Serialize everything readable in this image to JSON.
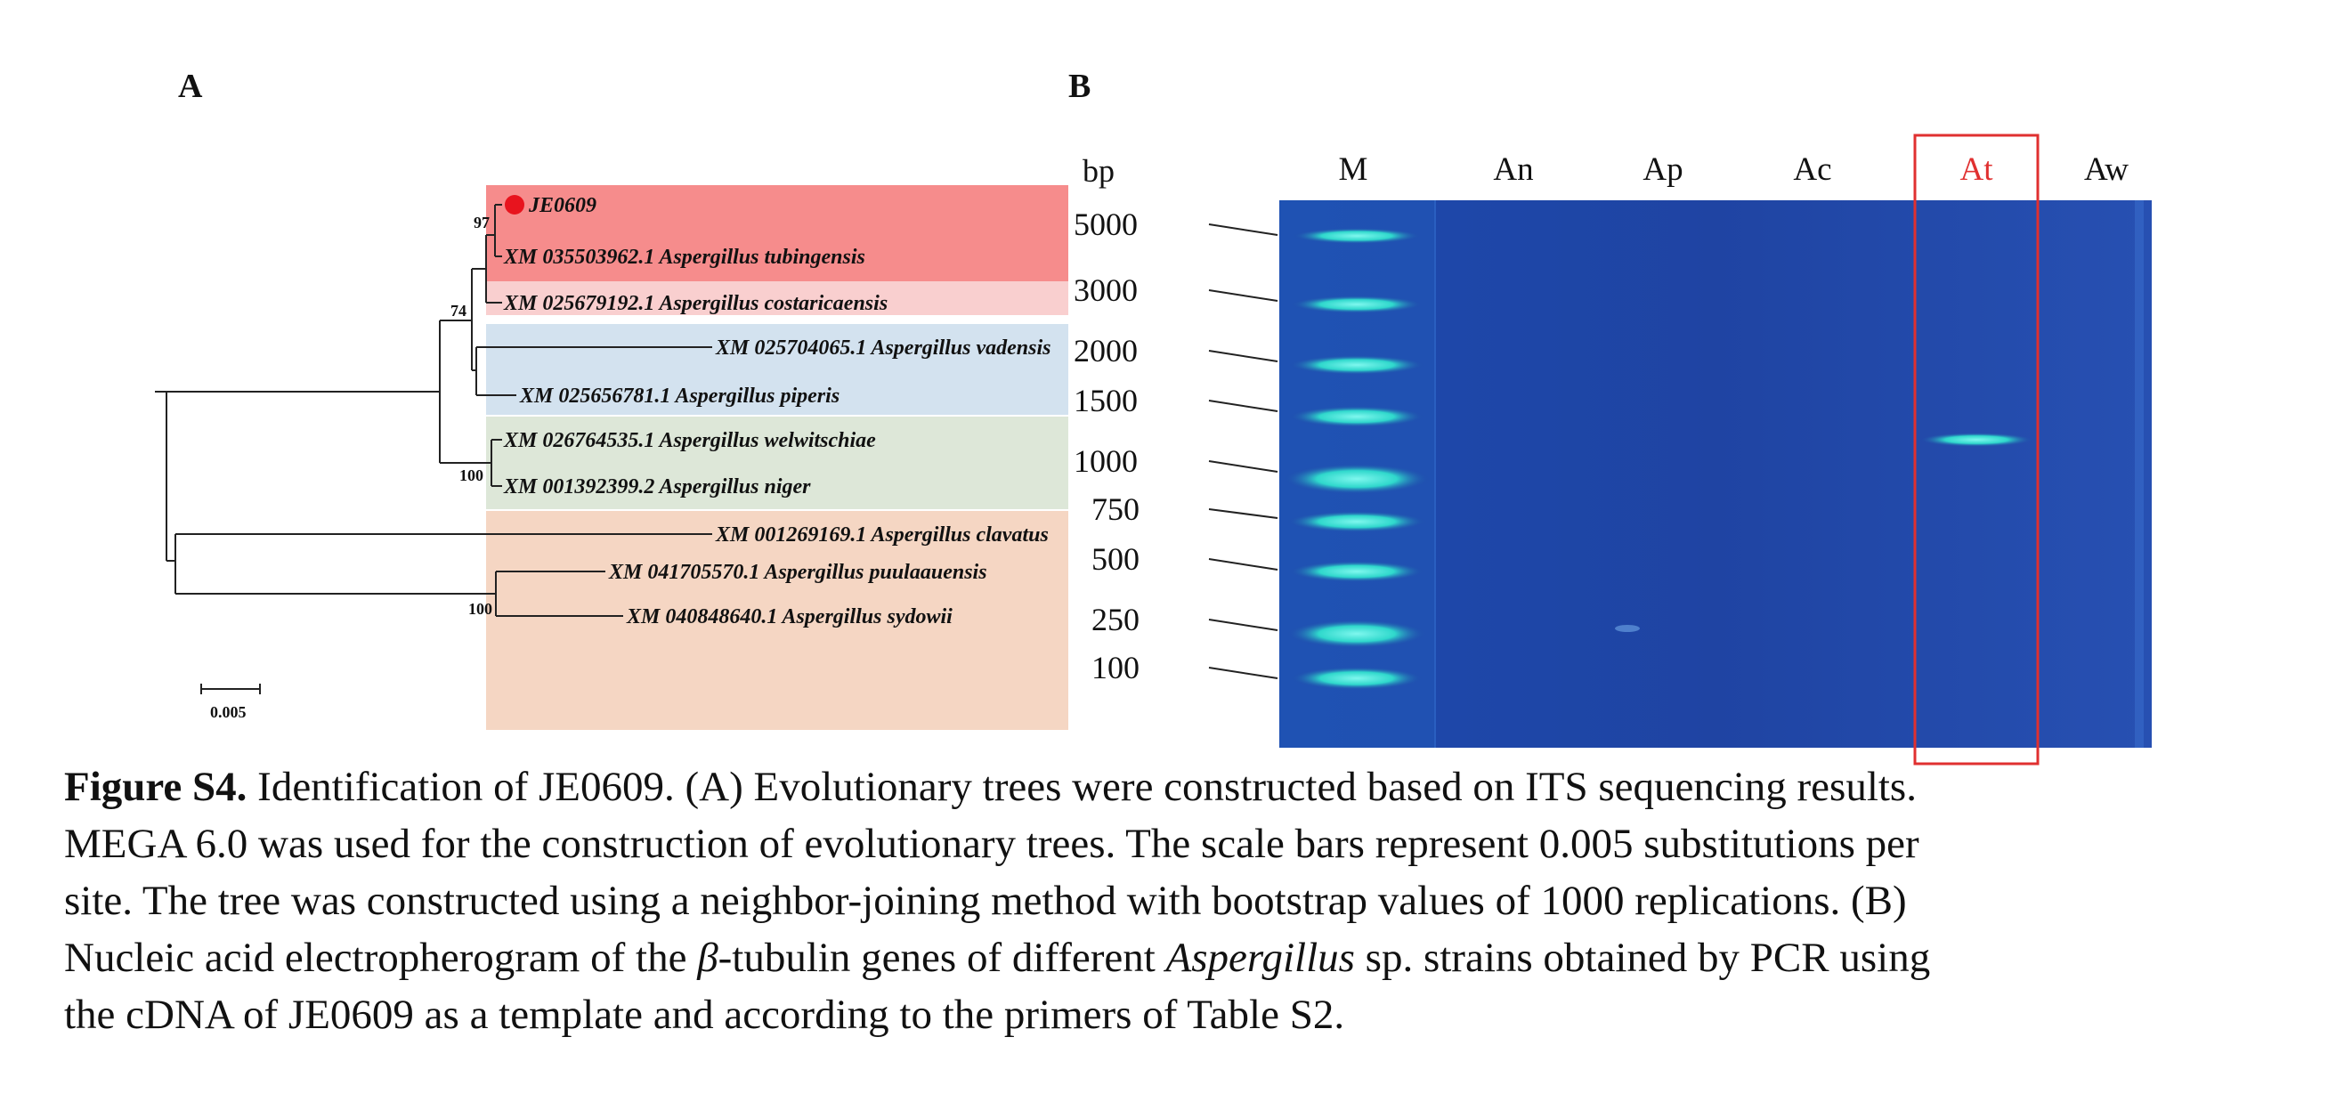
{
  "panel_labels": {
    "a": "A",
    "b": "B"
  },
  "tree": {
    "leaves": [
      {
        "label": "JE0609",
        "highlight": true
      },
      {
        "label": "XM 035503962.1 Aspergillus tubingensis"
      },
      {
        "label": "XM 025679192.1 Aspergillus costaricaensis"
      },
      {
        "label": "XM 025704065.1 Aspergillus vadensis"
      },
      {
        "label": "XM 025656781.1 Aspergillus piperis"
      },
      {
        "label": "XM 026764535.1 Aspergillus welwitschiae"
      },
      {
        "label": "XM 001392399.2 Aspergillus niger"
      },
      {
        "label": "XM 001269169.1 Aspergillus clavatus"
      },
      {
        "label": "XM 041705570.1 Aspergillus puulaauensis"
      },
      {
        "label": "XM 040848640.1 Aspergillus sydowii"
      }
    ],
    "bootstrap": {
      "b97": "97",
      "b74": "74",
      "b100a": "100",
      "b100b": "100"
    },
    "scale_label": "0.005",
    "colors": {
      "group_red": "#f68c8c",
      "group_pink": "#f9cfcf",
      "group_blue": "#d3e2ef",
      "group_green": "#dde7d8",
      "group_peach": "#f5d6c3",
      "marker": "#e8141e"
    }
  },
  "gel": {
    "unit_label": "bp",
    "ladder": [
      "5000",
      "3000",
      "2000",
      "1500",
      "1000",
      "750",
      "500",
      "250",
      "100"
    ],
    "lanes": [
      "M",
      "An",
      "Ap",
      "Ac",
      "At",
      "Aw"
    ],
    "highlighted_lane": "At",
    "colors": {
      "gel": "#1f47a8",
      "band": "#3fe6d8",
      "highlight_box": "#e03030"
    }
  },
  "caption": {
    "fig_label": "Figure S4.",
    "line1": "Identification of JE0609. (A) Evolutionary trees were constructed based on ITS sequencing results.",
    "line2": "MEGA 6.0 was used for the construction of evolutionary trees. The scale bars represent 0.005 substitutions per",
    "line3": "site. The tree was constructed using a neighbor-joining method with bootstrap values of 1000 replications. (B)",
    "line4_a": "Nucleic acid electropherogram of the ",
    "line4_beta": "β",
    "line4_b": "-tubulin genes of different ",
    "line4_genus": "Aspergillus",
    "line4_c": " sp. strains obtained by PCR using",
    "line5": "the cDNA of JE0609 as a template and according to the primers of Table S2."
  }
}
